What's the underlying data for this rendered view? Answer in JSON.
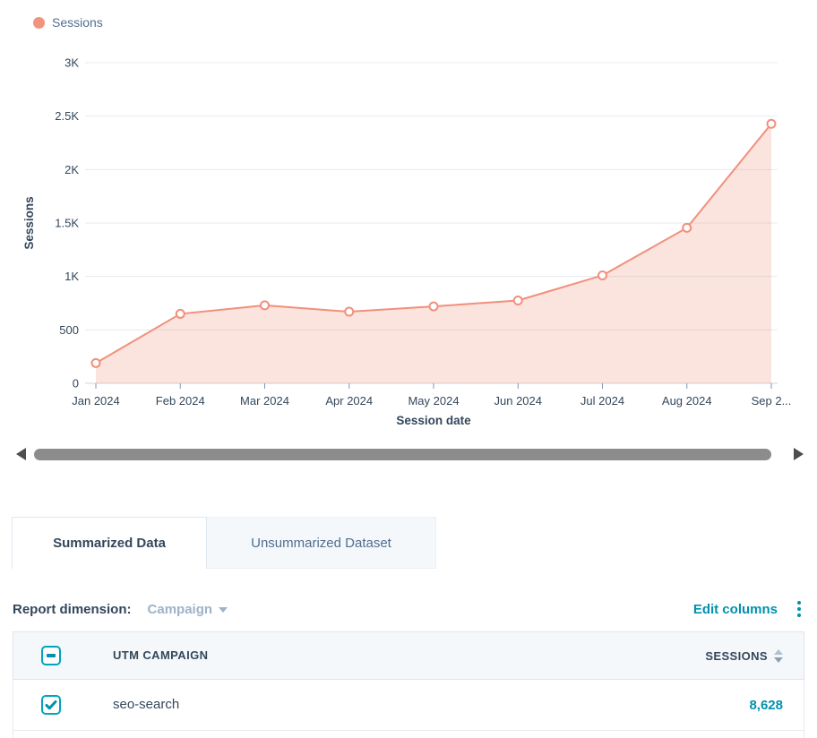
{
  "chart_data": {
    "type": "area",
    "x": [
      "Jan 2024",
      "Feb 2024",
      "Mar 2024",
      "Apr 2024",
      "May 2024",
      "Jun 2024",
      "Jul 2024",
      "Aug 2024",
      "Sep 2..."
    ],
    "series": [
      {
        "name": "Sessions",
        "values": [
          190,
          650,
          730,
          670,
          720,
          775,
          1010,
          1455,
          2428
        ]
      }
    ],
    "xlabel": "Session date",
    "ylabel": "Sessions",
    "ylim": [
      0,
      3000
    ],
    "yticks": [
      0,
      500,
      1000,
      1500,
      2000,
      2500,
      3000
    ],
    "ytick_labels": [
      "0",
      "500",
      "1K",
      "1.5K",
      "2K",
      "2.5K",
      "3K"
    ],
    "grid": true,
    "legend_position": "top-left",
    "line_color": "#f0907c",
    "fill_color": "rgba(240,144,124,0.25)",
    "marker": "open-circle"
  },
  "legend": {
    "label": "Sessions",
    "dot_color": "#f2937e"
  },
  "scrollbar": {
    "left_icon": "scroll-left-arrow",
    "right_icon": "scroll-right-arrow"
  },
  "tabs": [
    {
      "label": "Summarized Data",
      "active": true
    },
    {
      "label": "Unsummarized Dataset",
      "active": false
    }
  ],
  "report_dimension": {
    "label": "Report dimension:",
    "value": "Campaign"
  },
  "actions": {
    "edit_columns": "Edit columns",
    "kebab_icon": "vertical-dots-menu"
  },
  "table": {
    "header_checkbox_state": "indeterminate",
    "columns": [
      {
        "label": "UTM CAMPAIGN",
        "sortable": false
      },
      {
        "label": "SESSIONS",
        "sortable": true
      }
    ],
    "rows": [
      {
        "checked": true,
        "campaign": "seo-search",
        "sessions": "8,628"
      }
    ]
  },
  "colors": {
    "accent_coral": "#f0907c",
    "link_teal": "#0091ae",
    "checkbox_teal": "#00a4bd",
    "text_dark": "#33475b",
    "text_muted": "#516f90",
    "grid_line": "#e5ecf3",
    "baseline": "#cbd6e2",
    "header_bg": "#f5f8fa"
  }
}
